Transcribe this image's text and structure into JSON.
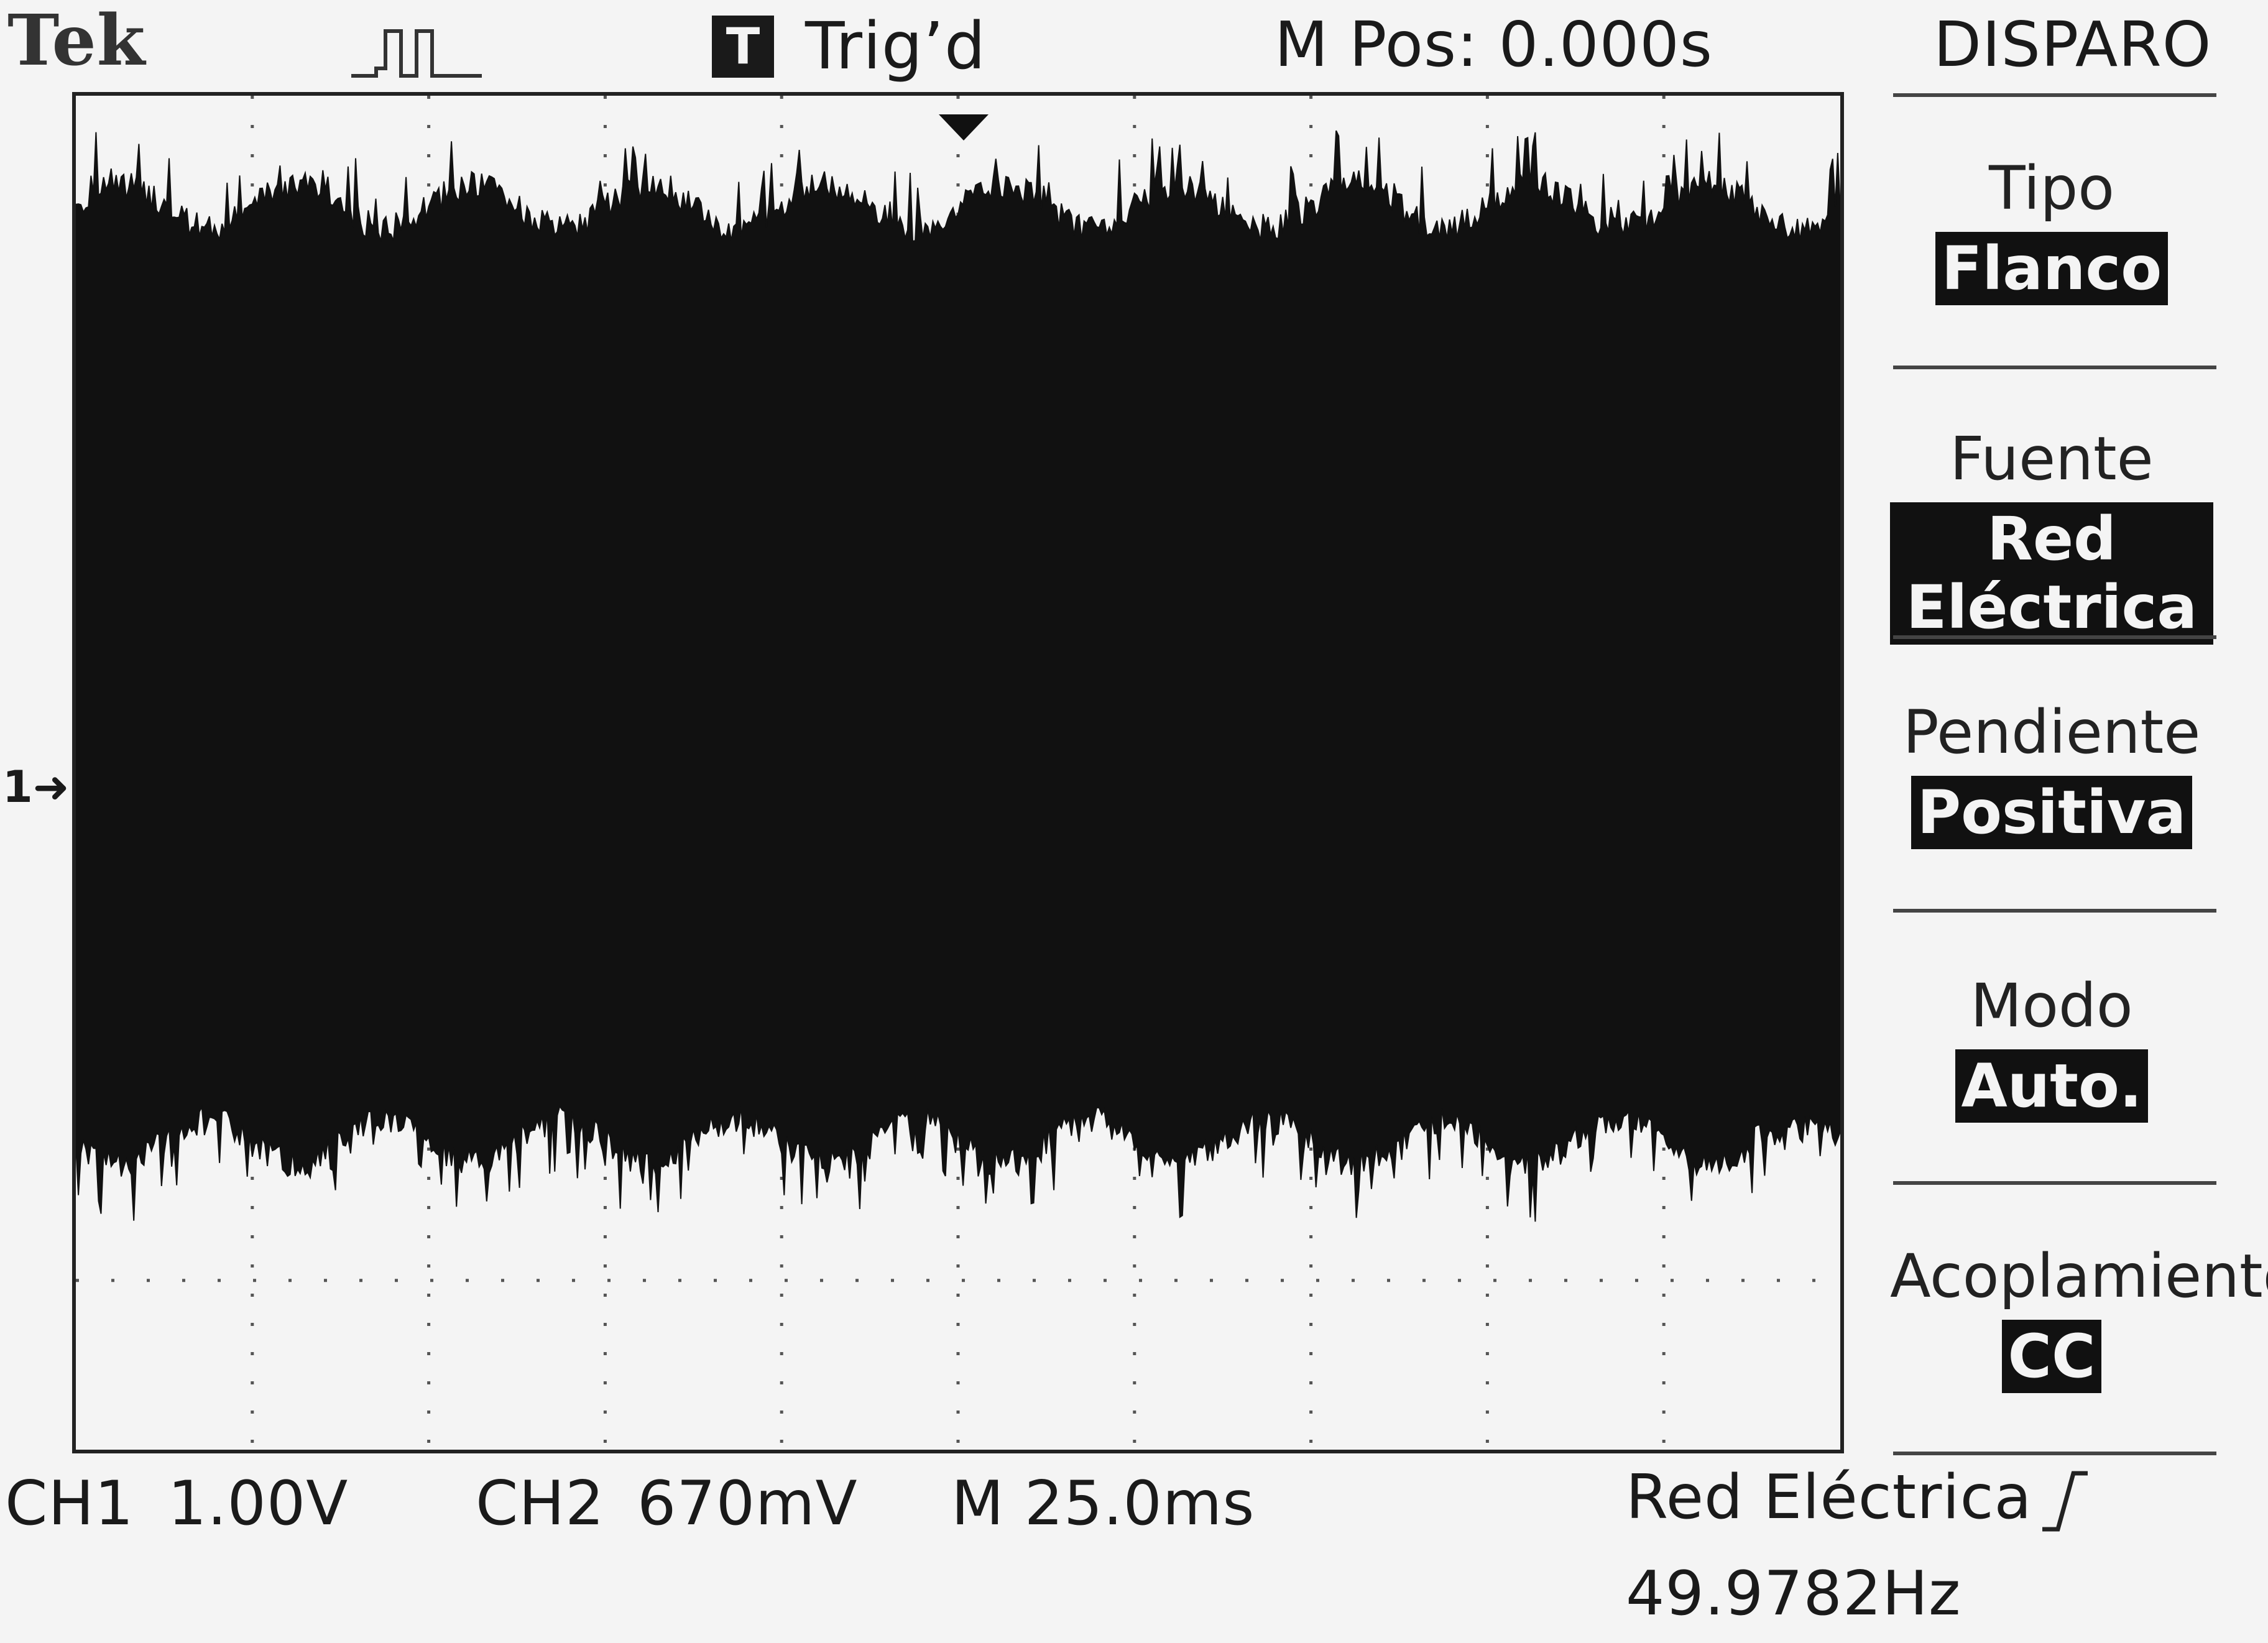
{
  "header": {
    "brand": "Tek",
    "trigger_status_icon_letter": "T",
    "trigger_status": "Trig’d",
    "position": "M Pos: 0.000s",
    "menu_title": "DISPARO"
  },
  "trigger_menu": [
    {
      "label": "Tipo",
      "value": "Flanco"
    },
    {
      "label": "Fuente",
      "value": "Red Eléctrica"
    },
    {
      "label": "Pendiente",
      "value": "Positiva"
    },
    {
      "label": "Modo",
      "value": "Auto."
    },
    {
      "label": "Acoplamiento",
      "value": "CC"
    }
  ],
  "footer": {
    "ch1": "CH1",
    "ch1_scale": "1.00V",
    "ch2": "CH2",
    "ch2_scale": "670mV",
    "timebase": "M 25.0ms",
    "trigger_source": "Red Eléctrica",
    "frequency": "49.9782Hz"
  },
  "channel_marker": "1",
  "colors": {
    "background": "#f4f4f4",
    "trace": "#111111",
    "grid": "#555555"
  }
}
